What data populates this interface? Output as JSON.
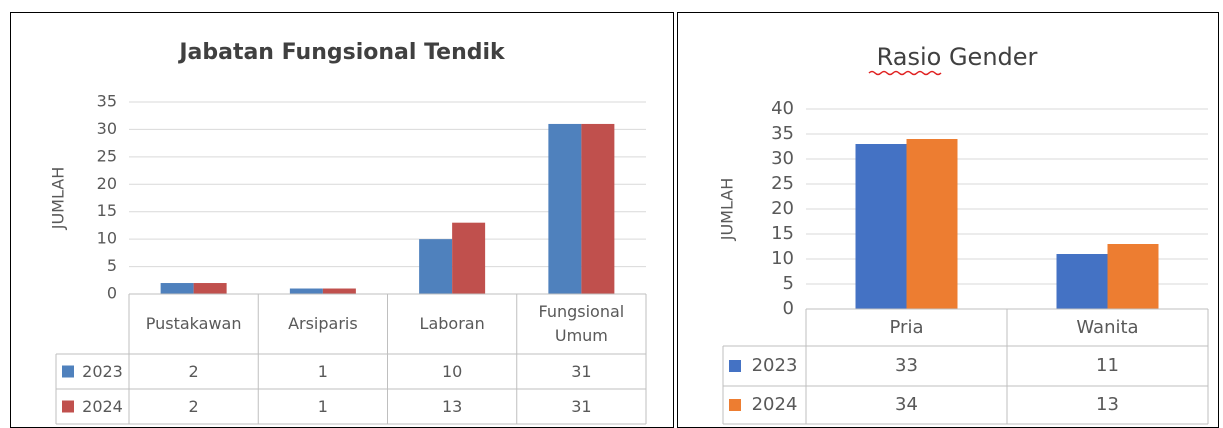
{
  "chart_data": [
    {
      "type": "bar",
      "title": "Jabatan Fungsional Tendik",
      "y_label": "JUMLAH",
      "categories": [
        "Pustakawan",
        "Arsiparis",
        "Laboran",
        "Fungsional Umum"
      ],
      "series": [
        {
          "name": "2023",
          "color": "#4f81bd",
          "values": [
            2,
            1,
            10,
            31
          ]
        },
        {
          "name": "2024",
          "color": "#c0504d",
          "values": [
            2,
            1,
            13,
            31
          ]
        }
      ],
      "ylim": [
        0,
        35
      ],
      "yticks": [
        0,
        5,
        10,
        15,
        20,
        25,
        30,
        35
      ],
      "grid": true,
      "data_table": true
    },
    {
      "type": "bar",
      "title": "Rasio Gender",
      "y_label": "JUMLAH",
      "categories": [
        "Pria",
        "Wanita"
      ],
      "series": [
        {
          "name": "2023",
          "color": "#4472c4",
          "values": [
            33,
            11
          ]
        },
        {
          "name": "2024",
          "color": "#ed7d31",
          "values": [
            34,
            13
          ]
        }
      ],
      "ylim": [
        0,
        40
      ],
      "yticks": [
        0,
        5,
        10,
        15,
        20,
        25,
        30,
        35,
        40
      ],
      "grid": true,
      "data_table": true
    }
  ]
}
